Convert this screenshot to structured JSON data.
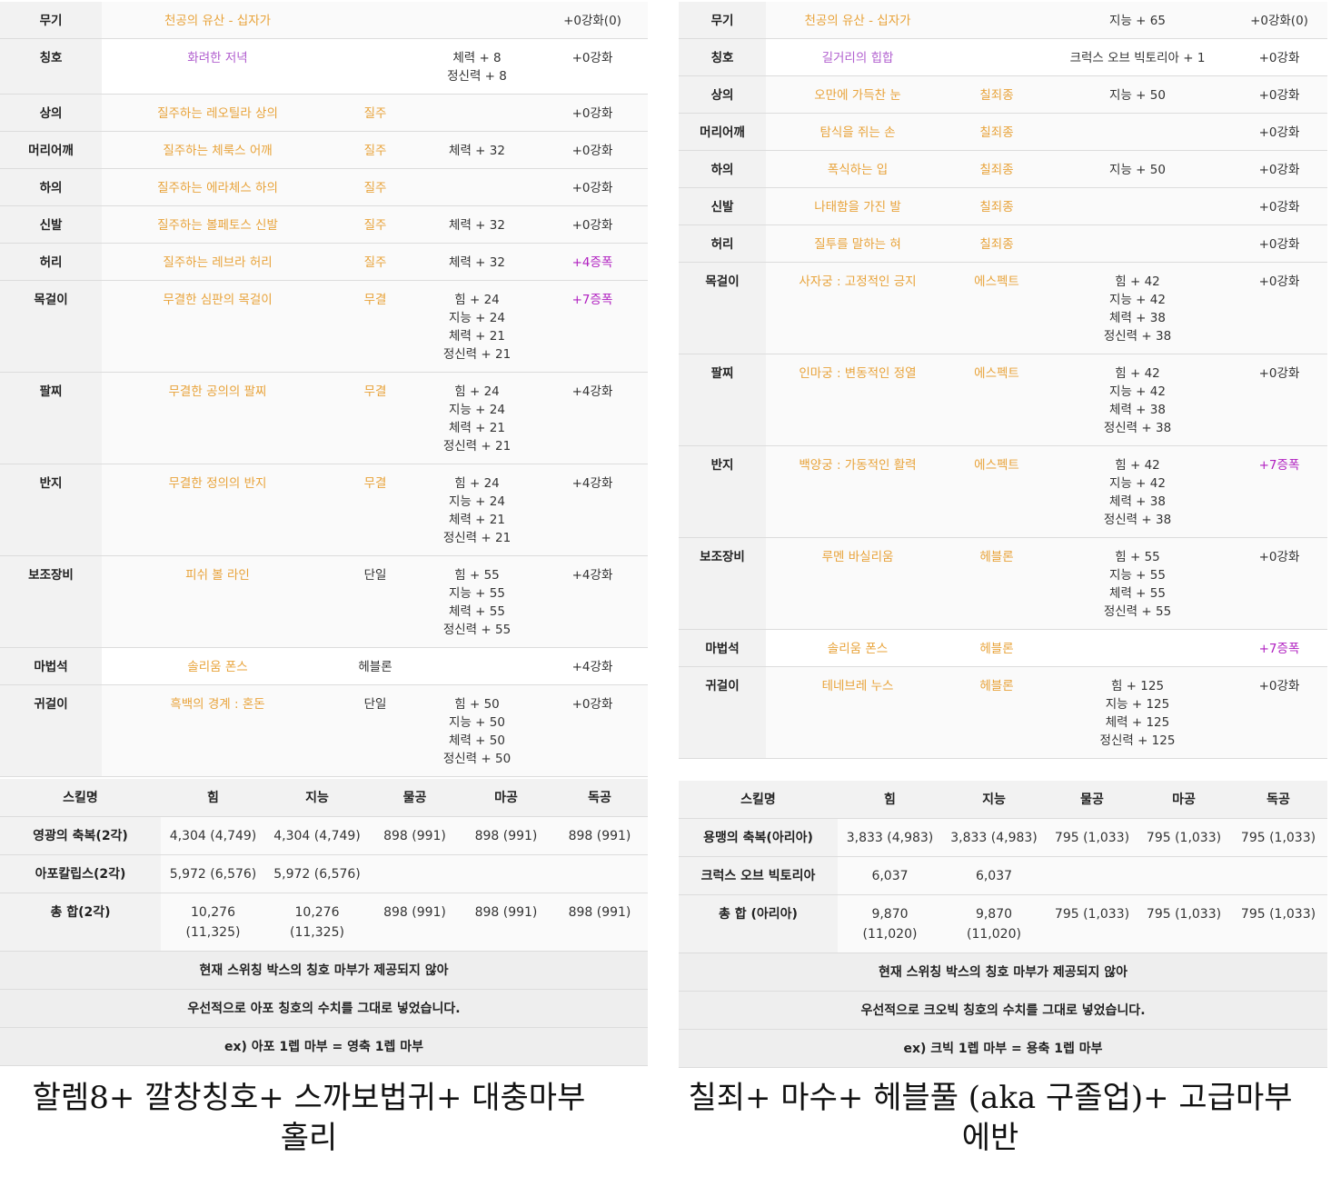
{
  "left": {
    "equipment": [
      {
        "slot": "무기",
        "name": "천공의 유산 - 십자가",
        "set": "",
        "stats": [],
        "enh": "+0강화(0)",
        "amp": false,
        "white": false
      },
      {
        "slot": "칭호",
        "name": "화려한 저녁",
        "set": "",
        "stats": [
          "체력 + 8",
          "정신력 + 8"
        ],
        "enh": "+0강화",
        "amp": false,
        "white": true,
        "purple": true
      },
      {
        "slot": "상의",
        "name": "질주하는 레오틸라 상의",
        "set": "질주",
        "stats": [],
        "enh": "+0강화",
        "amp": false,
        "white": false
      },
      {
        "slot": "머리어깨",
        "name": "질주하는 체룩스 어깨",
        "set": "질주",
        "stats": [
          "체력 + 32"
        ],
        "enh": "+0강화",
        "amp": false,
        "white": false
      },
      {
        "slot": "하의",
        "name": "질주하는 에라체스 하의",
        "set": "질주",
        "stats": [],
        "enh": "+0강화",
        "amp": false,
        "white": false
      },
      {
        "slot": "신발",
        "name": "질주하는 볼페토스 신발",
        "set": "질주",
        "stats": [
          "체력 + 32"
        ],
        "enh": "+0강화",
        "amp": false,
        "white": false
      },
      {
        "slot": "허리",
        "name": "질주하는 레브라 허리",
        "set": "질주",
        "stats": [
          "체력 + 32"
        ],
        "enh": "+4증폭",
        "amp": true,
        "white": false
      },
      {
        "slot": "목걸이",
        "name": "무결한 심판의 목걸이",
        "set": "무결",
        "stats": [
          "힘 + 24",
          "지능 + 24",
          "체력 + 21",
          "정신력 + 21"
        ],
        "enh": "+7증폭",
        "amp": true,
        "white": false
      },
      {
        "slot": "팔찌",
        "name": "무결한 공의의 팔찌",
        "set": "무결",
        "stats": [
          "힘 + 24",
          "지능 + 24",
          "체력 + 21",
          "정신력 + 21"
        ],
        "enh": "+4강화",
        "amp": false,
        "white": false
      },
      {
        "slot": "반지",
        "name": "무결한 정의의 반지",
        "set": "무결",
        "stats": [
          "힘 + 24",
          "지능 + 24",
          "체력 + 21",
          "정신력 + 21"
        ],
        "enh": "+4강화",
        "amp": false,
        "white": false
      },
      {
        "slot": "보조장비",
        "name": "피쉬 볼 라인",
        "set": "단일",
        "setPlain": true,
        "stats": [
          "힘 + 55",
          "지능 + 55",
          "체력 + 55",
          "정신력 + 55"
        ],
        "enh": "+4강화",
        "amp": false,
        "white": false
      },
      {
        "slot": "마법석",
        "name": "솔리움 폰스",
        "set": "헤블론",
        "setPlain": true,
        "stats": [],
        "enh": "+4강화",
        "amp": false,
        "white": true
      },
      {
        "slot": "귀걸이",
        "name": "흑백의 경계 : 혼돈",
        "set": "단일",
        "setPlain": true,
        "stats": [
          "힘 + 50",
          "지능 + 50",
          "체력 + 50",
          "정신력 + 50"
        ],
        "enh": "+0강화",
        "amp": false,
        "white": false
      }
    ],
    "skill_header": [
      "스킬명",
      "힘",
      "지능",
      "물공",
      "마공",
      "독공"
    ],
    "skills": [
      {
        "name": "영광의 축복(2각)",
        "vals": [
          "4,304 (4,749)",
          "4,304 (4,749)",
          "898 (991)",
          "898 (991)",
          "898 (991)"
        ]
      },
      {
        "name": "아포칼립스(2각)",
        "vals": [
          "5,972 (6,576)",
          "5,972 (6,576)",
          "",
          "",
          ""
        ]
      },
      {
        "name": "총 합(2각)",
        "vals": [
          "10,276\n(11,325)",
          "10,276\n(11,325)",
          "898 (991)",
          "898 (991)",
          "898 (991)"
        ]
      }
    ],
    "notes": [
      "현재 스위칭 박스의 칭호 마부가 제공되지 않아",
      "우선적으로 아포 칭호의 수치를 그대로 넣었습니다.",
      "ex) 아포 1렙 마부 = 영축 1렙 마부"
    ],
    "caption_line1": "할렘8+ 깔창칭호+ 스까보법귀+ 대충마부",
    "caption_line2": "홀리"
  },
  "right": {
    "equipment": [
      {
        "slot": "무기",
        "name": "천공의 유산 - 십자가",
        "set": "",
        "stats": [
          "지능 + 65"
        ],
        "enh": "+0강화(0)",
        "amp": false,
        "white": false
      },
      {
        "slot": "칭호",
        "name": "길거리의 힙합",
        "set": "",
        "stats": [
          "크럭스 오브 빅토리아 + 1"
        ],
        "enh": "+0강화",
        "amp": false,
        "white": true,
        "purple": true
      },
      {
        "slot": "상의",
        "name": "오만에 가득찬 눈",
        "set": "칠죄종",
        "stats": [
          "지능 + 50"
        ],
        "enh": "+0강화",
        "amp": false,
        "white": false
      },
      {
        "slot": "머리어깨",
        "name": "탐식을 쥐는 손",
        "set": "칠죄종",
        "stats": [],
        "enh": "+0강화",
        "amp": false,
        "white": false
      },
      {
        "slot": "하의",
        "name": "폭식하는 입",
        "set": "칠죄종",
        "stats": [
          "지능 + 50"
        ],
        "enh": "+0강화",
        "amp": false,
        "white": false
      },
      {
        "slot": "신발",
        "name": "나태함을 가진 발",
        "set": "칠죄종",
        "stats": [],
        "enh": "+0강화",
        "amp": false,
        "white": false
      },
      {
        "slot": "허리",
        "name": "질투를 말하는 혀",
        "set": "칠죄종",
        "stats": [],
        "enh": "+0강화",
        "amp": false,
        "white": false
      },
      {
        "slot": "목걸이",
        "name": "사자궁 : 고정적인 긍지",
        "set": "에스펙트",
        "stats": [
          "힘 + 42",
          "지능 + 42",
          "체력 + 38",
          "정신력 + 38"
        ],
        "enh": "+0강화",
        "amp": false,
        "white": false
      },
      {
        "slot": "팔찌",
        "name": "인마궁 : 변동적인 정열",
        "set": "에스펙트",
        "stats": [
          "힘 + 42",
          "지능 + 42",
          "체력 + 38",
          "정신력 + 38"
        ],
        "enh": "+0강화",
        "amp": false,
        "white": false
      },
      {
        "slot": "반지",
        "name": "백양궁 : 가동적인 활력",
        "set": "에스펙트",
        "stats": [
          "힘 + 42",
          "지능 + 42",
          "체력 + 38",
          "정신력 + 38"
        ],
        "enh": "+7증폭",
        "amp": true,
        "white": false
      },
      {
        "slot": "보조장비",
        "name": "루멘 바실리움",
        "set": "헤블론",
        "stats": [
          "힘 + 55",
          "지능 + 55",
          "체력 + 55",
          "정신력 + 55"
        ],
        "enh": "+0강화",
        "amp": false,
        "white": false
      },
      {
        "slot": "마법석",
        "name": "솔리움 폰스",
        "set": "헤블론",
        "stats": [],
        "enh": "+7증폭",
        "amp": true,
        "white": true
      },
      {
        "slot": "귀걸이",
        "name": "테네브레 누스",
        "set": "헤블론",
        "stats": [
          "힘 + 125",
          "지능 + 125",
          "체력 + 125",
          "정신력 + 125"
        ],
        "enh": "+0강화",
        "amp": false,
        "white": false
      }
    ],
    "skill_header": [
      "스킬명",
      "힘",
      "지능",
      "물공",
      "마공",
      "독공"
    ],
    "skills": [
      {
        "name": "용맹의 축복(아리아)",
        "vals": [
          "3,833 (4,983)",
          "3,833 (4,983)",
          "795 (1,033)",
          "795 (1,033)",
          "795 (1,033)"
        ]
      },
      {
        "name": "크럭스 오브 빅토리아",
        "vals": [
          "6,037",
          "6,037",
          "",
          "",
          ""
        ]
      },
      {
        "name": "총 합 (아리아)",
        "vals": [
          "9,870\n(11,020)",
          "9,870\n(11,020)",
          "795 (1,033)",
          "795 (1,033)",
          "795 (1,033)"
        ]
      }
    ],
    "notes": [
      "현재 스위칭 박스의 칭호 마부가 제공되지 않아",
      "우선적으로 크오빅 칭호의 수치를 그대로 넣었습니다.",
      "ex) 크빅 1렙 마부 = 용축 1렙 마부"
    ],
    "caption_line1": "칠죄+ 마수+ 헤블풀 (aka 구졸업)+ 고급마부",
    "caption_line2": "에반"
  }
}
